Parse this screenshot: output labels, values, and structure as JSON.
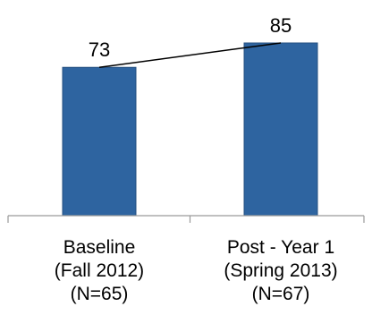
{
  "chart_data": {
    "type": "bar",
    "categories": [
      [
        "Baseline",
        "(Fall 2012)",
        "(N=65)"
      ],
      [
        "Post - Year 1",
        "(Spring 2013)",
        "(N=67)"
      ]
    ],
    "values": [
      73,
      85
    ],
    "data_labels": [
      "73",
      "85"
    ],
    "title": "",
    "xlabel": "",
    "ylabel": "",
    "ylim": [
      0,
      85
    ],
    "grid": false,
    "legend": "none",
    "trend_line": true,
    "colors": {
      "bar": "#2E64A0",
      "bar_edge": "#244F80",
      "axis": "#9A9A9A",
      "trend_line": "#000000"
    }
  }
}
